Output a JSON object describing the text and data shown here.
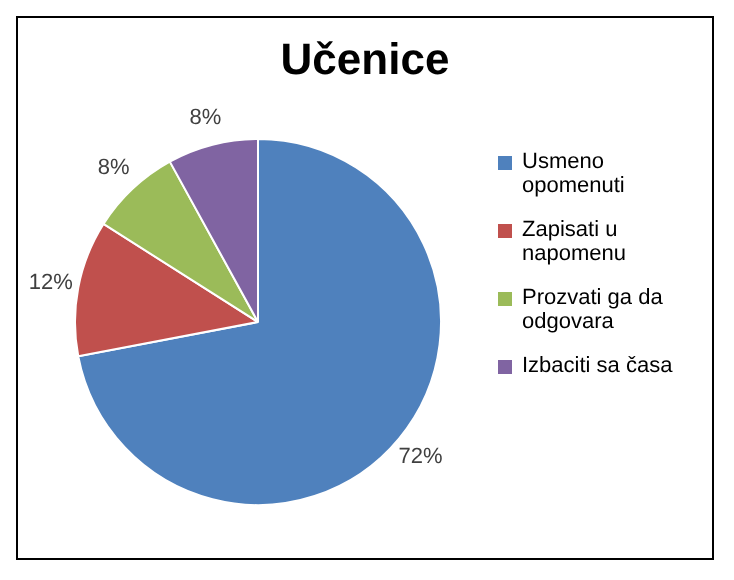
{
  "chart_data": {
    "type": "pie",
    "title": "Učenice",
    "categories": [
      "Usmeno opomenuti",
      "Zapisati u napomenu",
      "Prozvati ga da odgovara",
      "Izbaciti sa časa"
    ],
    "values": [
      72,
      12,
      8,
      8
    ],
    "colors": [
      "#4f81bd",
      "#c0504d",
      "#9bbb59",
      "#8064a2"
    ],
    "value_labels": [
      "72%",
      "12%",
      "8%",
      "8%"
    ],
    "legend": "right"
  }
}
